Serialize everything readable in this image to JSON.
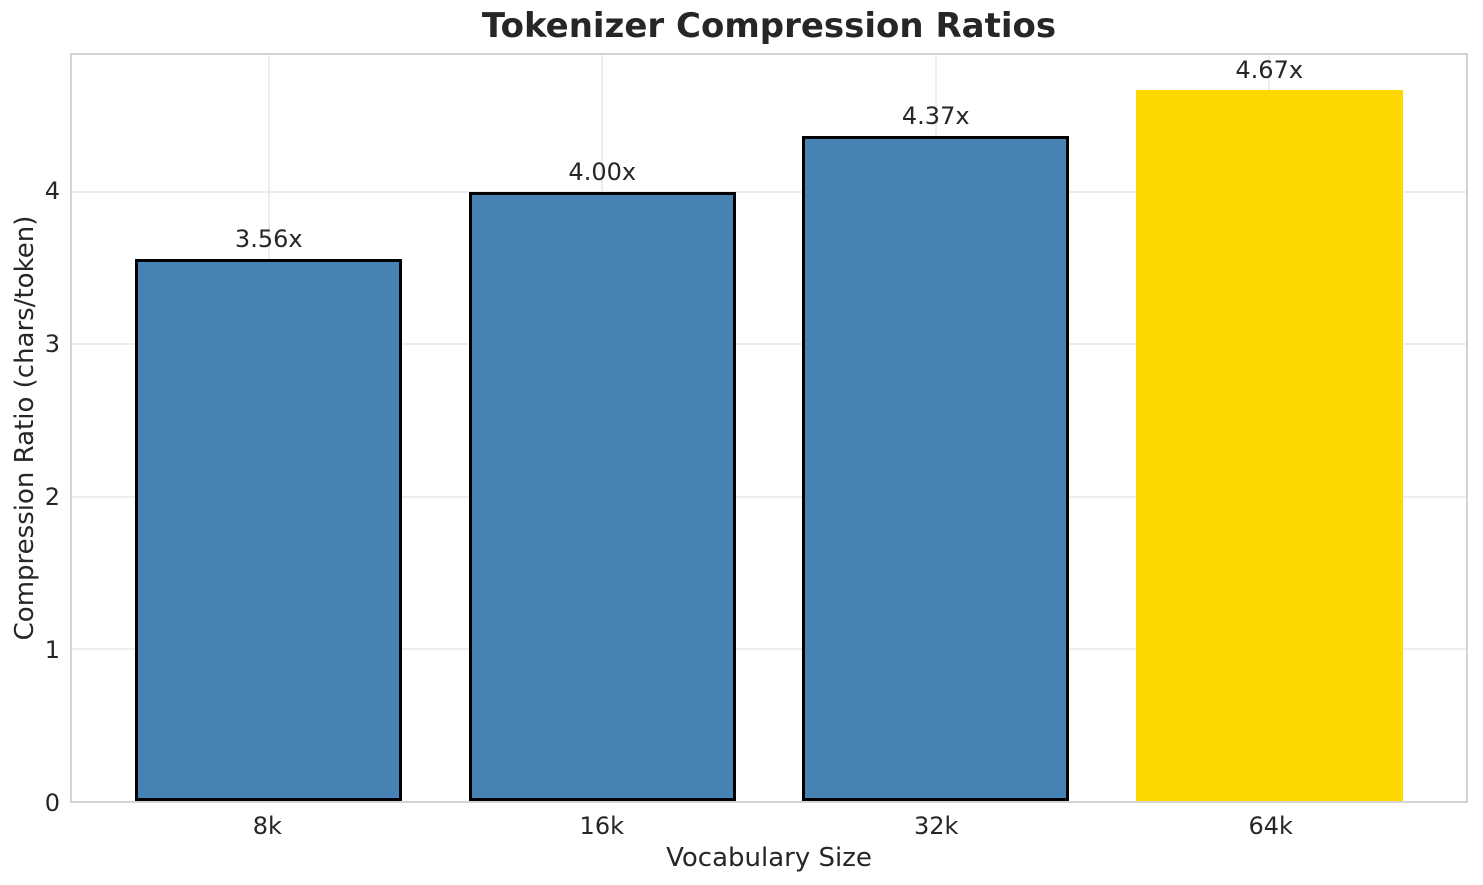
{
  "chart_data": {
    "type": "bar",
    "title": "Tokenizer Compression Ratios",
    "xlabel": "Vocabulary Size",
    "ylabel": "Compression Ratio (chars/token)",
    "categories": [
      "8k",
      "16k",
      "32k",
      "64k"
    ],
    "values": [
      3.56,
      4.0,
      4.37,
      4.67
    ],
    "bar_labels": [
      "3.56x",
      "4.00x",
      "4.37x",
      "4.67x"
    ],
    "bar_colors": [
      "#4682B4",
      "#4682B4",
      "#4682B4",
      "#FFD700"
    ],
    "bar_edge_colors": [
      "#000000",
      "#000000",
      "#000000",
      "none"
    ],
    "highlight_category": "64k",
    "yticks": [
      0,
      1,
      2,
      3,
      4
    ],
    "ylim": [
      0,
      4.9
    ],
    "xlim": [
      -0.59,
      3.59
    ],
    "bar_width": 0.8,
    "grid": true,
    "legend": "none",
    "colors": {
      "grid": "#ededed",
      "spine": "#d4d4d4",
      "text": "#262626",
      "background": "#ffffff",
      "bar_default": "#4682B4",
      "bar_highlight": "#FFD700",
      "bar_edge": "#000000"
    }
  }
}
